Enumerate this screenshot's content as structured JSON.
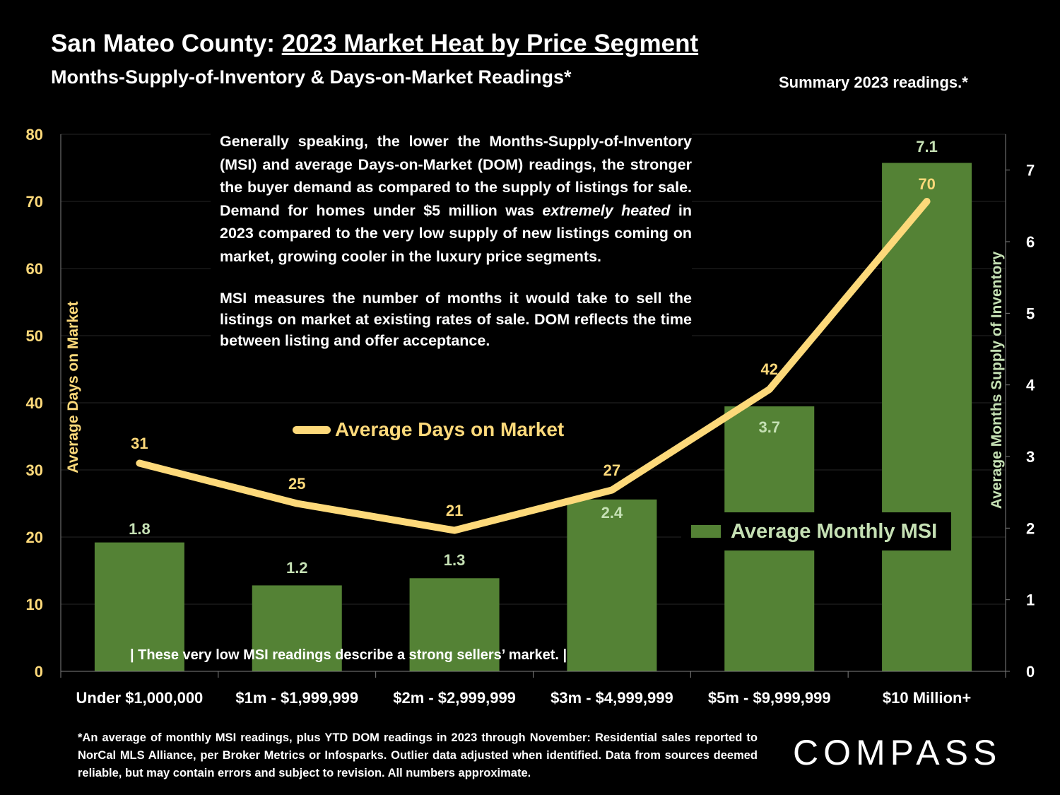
{
  "header": {
    "title_prefix": "San Mateo County: ",
    "title_main": "2023 Market Heat by Price Segment",
    "subtitle": "Months-Supply-of-Inventory & Days-on-Market Readings*",
    "summary": "Summary 2023 readings.*"
  },
  "description": {
    "p1_before": "Generally speaking, the lower the Months-Supply-of-Inventory (MSI) and average Days-on-Market (DOM) readings, the stronger the buyer demand as compared to the supply of listings for sale. Demand for homes under $5 million was ",
    "p1_em": "extremely heated",
    "p1_after": " in 2023 compared to the very low supply of new listings coming on market, growing cooler in the luxury price segments.",
    "p2": "MSI measures the number of months it would take to sell the listings on market at existing rates of sale. DOM reflects the time between listing and offer acceptance."
  },
  "note": "|  These very low MSI readings describe a strong sellers’ market.  |",
  "footnote": "*An average of monthly MSI readings, plus YTD DOM readings in 2023 through November:  Residential sales reported to NorCal MLS Alliance, per Broker Metrics or Infosparks. Outlier data adjusted when identified. Data from sources deemed reliable, but may contain errors and subject to revision. All numbers approximate.",
  "logo": "COMPASS",
  "colors": {
    "bar": "#548235",
    "line": "#FDD97A",
    "msi_label": "#C5E0B4",
    "axis_text": "#FDD97A",
    "grid": "#262626"
  },
  "chart_data": {
    "type": "bar+line",
    "categories": [
      "Under $1,000,000",
      "$1m - $1,999,999",
      "$2m - $2,999,999",
      "$3m - $4,999,999",
      "$5m - $9,999,999",
      "$10 Million+"
    ],
    "series": [
      {
        "name": "Average Monthly MSI",
        "type": "bar",
        "axis": "right",
        "values": [
          1.8,
          1.2,
          1.3,
          2.4,
          3.7,
          7.1
        ]
      },
      {
        "name": "Average Days on Market",
        "type": "line",
        "axis": "left",
        "values": [
          31,
          25,
          21,
          27,
          42,
          70
        ]
      }
    ],
    "ylabel_left": "Average Days on Market",
    "ylabel_right": "Average Months Supply of Inventory",
    "ylim_left": [
      0,
      80
    ],
    "ylim_right": [
      0,
      7.5
    ],
    "yticks_left": [
      0,
      10,
      20,
      30,
      40,
      50,
      60,
      70,
      80
    ],
    "yticks_right": [
      0,
      1,
      2,
      3,
      4,
      5,
      6,
      7
    ],
    "legend": [
      "Average Days on Market",
      "Average Monthly MSI"
    ],
    "grid": true
  }
}
